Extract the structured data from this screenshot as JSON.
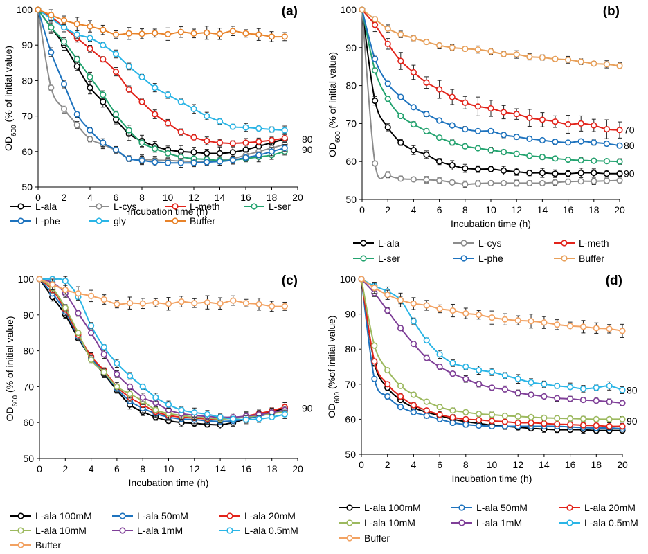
{
  "chart_data": [
    {
      "panel": "(a)",
      "type": "line",
      "xlabel": "Incubation time (h)",
      "ylabel": "OD600 (% of initial value)",
      "xlim": [
        0,
        20
      ],
      "ylim": [
        50,
        100
      ],
      "xticks": [
        0,
        2,
        4,
        6,
        8,
        10,
        12,
        14,
        16,
        18,
        20
      ],
      "yticks": [
        50,
        60,
        70,
        80,
        90,
        100
      ],
      "annotations": [
        "80",
        "90"
      ],
      "legend_position": "bottom",
      "legend_columns": 4,
      "grid": false,
      "x": [
        0,
        1,
        2,
        3,
        4,
        5,
        6,
        7,
        8,
        9,
        10,
        11,
        12,
        13,
        14,
        15,
        16,
        17,
        18,
        19
      ],
      "series": [
        {
          "name": "L-ala",
          "color": "#000000",
          "values": [
            100,
            95,
            90,
            84,
            78,
            74,
            69,
            65,
            63,
            61.5,
            60.5,
            60,
            59.8,
            59.5,
            59.5,
            59.8,
            60.5,
            61.5,
            62.5,
            63.5
          ]
        },
        {
          "name": "L-cys",
          "color": "#8c8c8c",
          "values": [
            100,
            78,
            72,
            67.5,
            63.5,
            62,
            60.3,
            58,
            57.8,
            57.6,
            57.5,
            57.3,
            57.2,
            57.3,
            57.5,
            58,
            59,
            60,
            61,
            62
          ]
        },
        {
          "name": "L-meth",
          "color": "#e2231a",
          "values": [
            100,
            98,
            95,
            92,
            89,
            86,
            82.5,
            77.5,
            74,
            70.5,
            68,
            65.5,
            64,
            63,
            62.5,
            62.3,
            62.5,
            62.8,
            63.2,
            63.8
          ]
        },
        {
          "name": "L-ser",
          "color": "#23a36f",
          "values": [
            100,
            95,
            91,
            86,
            81,
            76,
            70.5,
            66,
            62.5,
            60.8,
            59.5,
            58.5,
            58,
            57.8,
            57.5,
            57.6,
            58,
            58.5,
            59,
            60
          ]
        },
        {
          "name": "L-phe",
          "color": "#1e73be",
          "values": [
            100,
            88,
            79,
            70.5,
            66,
            62.5,
            60.5,
            58,
            57.5,
            57,
            56.8,
            56.8,
            56.8,
            57,
            57.2,
            57.6,
            58.3,
            59,
            60,
            61
          ]
        },
        {
          "name": "gly",
          "color": "#2ab5e6",
          "values": [
            100,
            97.5,
            95,
            93,
            92,
            90,
            87.5,
            84,
            81,
            78,
            76,
            74,
            72,
            70,
            68.5,
            67,
            66.8,
            66.5,
            66.2,
            66
          ]
        },
        {
          "name": "Buffer",
          "color": "#e8832a",
          "values": [
            100,
            98.5,
            97,
            96,
            95.3,
            94.3,
            93,
            93.3,
            93.2,
            93.4,
            93.1,
            93.7,
            93.3,
            93.5,
            93.2,
            94,
            93.3,
            93,
            92.4,
            92.4
          ]
        }
      ]
    },
    {
      "panel": "(b)",
      "type": "line",
      "xlabel": "Incubation time (h)",
      "ylabel": "OD600 (% of initial value)",
      "xlim": [
        0,
        20
      ],
      "ylim": [
        50,
        100
      ],
      "xticks": [
        0,
        2,
        4,
        6,
        8,
        10,
        12,
        14,
        16,
        18,
        20
      ],
      "yticks": [
        50,
        60,
        70,
        80,
        90,
        100
      ],
      "annotations": [
        "70",
        "80",
        "90"
      ],
      "legend_position": "bottom",
      "legend_columns": 3,
      "grid": false,
      "x": [
        0,
        1,
        2,
        3,
        4,
        5,
        6,
        7,
        8,
        9,
        10,
        11,
        12,
        13,
        14,
        15,
        16,
        17,
        18,
        19,
        20
      ],
      "series": [
        {
          "name": "L-ala",
          "color": "#000000",
          "values": [
            100,
            76,
            69,
            65,
            63,
            61.8,
            60,
            59,
            58.2,
            58,
            58,
            57.6,
            57.3,
            57,
            57,
            56.8,
            56.8,
            57,
            57,
            56.8,
            56.8
          ]
        },
        {
          "name": "L-cys",
          "color": "#8c8c8c",
          "values": [
            100,
            59.5,
            56.5,
            55.5,
            55.3,
            55.2,
            55,
            54.5,
            54,
            54.2,
            54.3,
            54.3,
            54.3,
            54.3,
            54.3,
            54.5,
            54.7,
            54.8,
            54.8,
            54.9,
            55
          ]
        },
        {
          "name": "L-meth",
          "color": "#e2231a",
          "values": [
            100,
            96,
            91,
            86.5,
            83.5,
            80.8,
            79,
            77,
            75.5,
            74.5,
            74,
            73,
            72.5,
            71.5,
            71,
            70.5,
            69.8,
            70,
            69.5,
            68.5,
            68.3
          ]
        },
        {
          "name": "L-ser",
          "color": "#23a36f",
          "values": [
            100,
            84,
            76.5,
            72,
            69.8,
            68,
            66.3,
            65,
            64,
            63.5,
            63,
            62.5,
            62,
            61.5,
            61.2,
            60.8,
            60.5,
            60.3,
            60.2,
            60.1,
            60
          ]
        },
        {
          "name": "L-phe",
          "color": "#1e73be",
          "values": [
            100,
            87,
            80.5,
            77,
            74.3,
            72.5,
            70.8,
            69.5,
            68.5,
            68,
            68,
            67,
            66.5,
            66,
            65.6,
            65.2,
            65,
            65.3,
            65,
            64.7,
            64.2
          ]
        },
        {
          "name": "Buffer",
          "color": "#e8a05a",
          "values": [
            100,
            97.5,
            95,
            93.5,
            92.5,
            91.5,
            90.6,
            90,
            89.7,
            89.5,
            89,
            88.3,
            88.2,
            87.6,
            87.4,
            87,
            86.8,
            86.3,
            85.8,
            85.6,
            85.2
          ]
        }
      ]
    },
    {
      "panel": "(c)",
      "type": "line",
      "xlabel": "Incubation time (h)",
      "ylabel": "OD600 (% of initial value)",
      "xlim": [
        0,
        20
      ],
      "ylim": [
        50,
        100
      ],
      "xticks": [
        0,
        2,
        4,
        6,
        8,
        10,
        12,
        14,
        16,
        18,
        20
      ],
      "yticks": [
        50,
        60,
        70,
        80,
        90,
        100
      ],
      "annotations": [
        "90"
      ],
      "legend_position": "bottom",
      "legend_columns": 3,
      "grid": false,
      "x": [
        0,
        1,
        2,
        3,
        4,
        5,
        6,
        7,
        8,
        9,
        10,
        11,
        12,
        13,
        14,
        15,
        16,
        17,
        18,
        19
      ],
      "series": [
        {
          "name": "L-ala 100mM",
          "color": "#000000",
          "values": [
            100,
            95,
            90,
            83.5,
            78,
            73.5,
            69,
            65,
            63,
            61.5,
            60.5,
            60,
            59.8,
            59.5,
            59.4,
            60,
            61,
            62,
            63,
            64
          ]
        },
        {
          "name": "L-ala 50mM",
          "color": "#1e73be",
          "values": [
            100,
            96,
            91,
            84,
            78,
            74,
            69.5,
            66,
            64,
            62.5,
            61.5,
            61,
            60.8,
            60.5,
            60.3,
            60.5,
            61,
            61.8,
            62.5,
            63.3
          ]
        },
        {
          "name": "L-ala 20mM",
          "color": "#e2231a",
          "values": [
            100,
            97,
            91.5,
            84.5,
            78.5,
            74.5,
            70,
            67,
            65,
            63,
            62,
            61.5,
            61.3,
            61,
            61,
            61.3,
            61.8,
            62.5,
            63.3,
            64.3
          ]
        },
        {
          "name": "L-ala 10mM",
          "color": "#9cb95e",
          "values": [
            100,
            97.5,
            92,
            85,
            77.5,
            74,
            70,
            68,
            66,
            63.5,
            62.5,
            62,
            61.5,
            61.3,
            61,
            61.2,
            61.5,
            62,
            62.5,
            63
          ]
        },
        {
          "name": "L-ala 1mM",
          "color": "#7f3f98",
          "values": [
            100,
            99,
            96,
            90.5,
            85,
            79,
            73.5,
            70,
            67,
            65.5,
            63.5,
            62.5,
            62,
            61.7,
            61.5,
            61.5,
            61.8,
            62.2,
            62.8,
            63.5
          ]
        },
        {
          "name": "L-ala 0.5mM",
          "color": "#2ab5e6",
          "values": [
            100,
            100,
            99.5,
            95,
            87,
            81,
            76.5,
            73,
            70,
            67,
            65,
            63.5,
            62.8,
            62.3,
            61.5,
            61,
            60.8,
            61,
            61.5,
            62.3
          ]
        },
        {
          "name": "Buffer",
          "color": "#f2a262",
          "values": [
            100,
            98.5,
            97,
            96,
            95.3,
            94.3,
            93,
            93.3,
            93.2,
            93.4,
            93.1,
            93.7,
            93.3,
            93.5,
            93.2,
            94,
            93.3,
            93,
            92.4,
            92.4
          ]
        }
      ]
    },
    {
      "panel": "(d)",
      "type": "line",
      "xlabel": "Incubation time (h)",
      "ylabel": "OD600 (%of initial value)",
      "xlim": [
        0,
        20
      ],
      "ylim": [
        50,
        100
      ],
      "xticks": [
        0,
        2,
        4,
        6,
        8,
        10,
        12,
        14,
        16,
        18,
        20
      ],
      "yticks": [
        50,
        60,
        70,
        80,
        90,
        100
      ],
      "annotations": [
        "80",
        "90"
      ],
      "legend_position": "bottom",
      "legend_columns": 3,
      "grid": false,
      "x": [
        0,
        1,
        2,
        3,
        4,
        5,
        6,
        7,
        8,
        9,
        10,
        11,
        12,
        13,
        14,
        15,
        16,
        17,
        18,
        19,
        20
      ],
      "series": [
        {
          "name": "L-ala 100mM",
          "color": "#000000",
          "values": [
            100,
            76,
            69,
            65.5,
            63.3,
            62,
            61,
            60,
            59.3,
            58.8,
            58.3,
            58,
            57.7,
            57.4,
            57.2,
            57,
            57,
            57,
            56.8,
            56.8,
            56.8
          ]
        },
        {
          "name": "L-ala 50mM",
          "color": "#1e73be",
          "values": [
            100,
            71.5,
            66.5,
            63.5,
            62,
            61,
            60,
            59,
            58.5,
            58.2,
            58,
            58,
            58,
            58,
            58,
            58,
            57.8,
            57.6,
            57.5,
            57.5,
            57.3
          ]
        },
        {
          "name": "L-ala 20mM",
          "color": "#e2231a",
          "values": [
            100,
            76.5,
            70,
            66.5,
            64,
            62.5,
            61.3,
            60.5,
            60,
            59.8,
            59.5,
            59.3,
            59,
            59,
            58.8,
            58.6,
            58.5,
            58.3,
            58.2,
            58,
            58
          ]
        },
        {
          "name": "L-ala 10mM",
          "color": "#9cb95e",
          "values": [
            100,
            81,
            74,
            69.5,
            67,
            65,
            63.5,
            62.5,
            62,
            61.5,
            61.3,
            61,
            60.8,
            60.6,
            60.4,
            60.3,
            60.2,
            60.1,
            60,
            60,
            60
          ]
        },
        {
          "name": "L-ala 1mM",
          "color": "#7f3f98",
          "values": [
            100,
            96,
            91,
            86,
            81.5,
            77.5,
            75,
            73,
            71.5,
            70,
            69,
            68.5,
            67.5,
            67,
            66.5,
            66,
            65.8,
            65.5,
            65.3,
            65,
            64.6
          ]
        },
        {
          "name": "L-ala 0.5mM",
          "color": "#2ab5e6",
          "values": [
            100,
            98,
            96.5,
            94,
            88,
            82.5,
            78.5,
            76,
            75,
            74,
            73.5,
            72.5,
            71.5,
            70.5,
            70,
            69.5,
            69.2,
            68.7,
            69,
            69.5,
            68.3
          ]
        },
        {
          "name": "Buffer",
          "color": "#f2a262",
          "values": [
            100,
            97.5,
            95.5,
            94,
            93,
            92.5,
            91.5,
            91,
            90.2,
            89.8,
            89,
            88.5,
            88.2,
            88,
            87.6,
            87,
            86.6,
            86.4,
            86,
            85.8,
            85.2
          ]
        }
      ]
    }
  ]
}
